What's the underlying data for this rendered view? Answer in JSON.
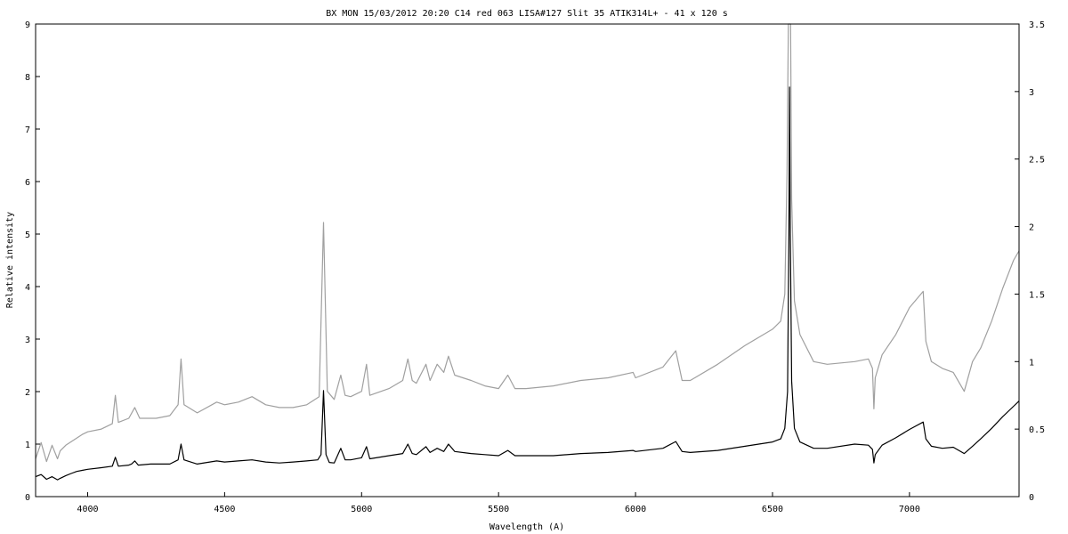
{
  "chart_data": {
    "type": "line",
    "title": "BX MON 15/03/2012 20:20 C14 red 063 LISA#127 Slit 35 ATIK314L+ - 41 x 120 s",
    "xlabel": "Wavelength (A)",
    "ylabel": "Relative intensity",
    "xlim": [
      3810,
      7400
    ],
    "ylim": [
      0,
      9
    ],
    "y2lim": [
      0,
      3.5
    ],
    "xticks": [
      "4000",
      "4500",
      "5000",
      "5500",
      "6000",
      "6500",
      "7000"
    ],
    "yticks": [
      "0",
      "1",
      "2",
      "3",
      "4",
      "5",
      "6",
      "7",
      "8",
      "9"
    ],
    "y2ticks": [
      "0",
      "0.5",
      "1",
      "1.5",
      "2",
      "2.5",
      "3",
      "3.5"
    ],
    "grid": false,
    "series": [
      {
        "axis": "left",
        "color": "#000000",
        "points": [
          [
            3810,
            0.38
          ],
          [
            3830,
            0.42
          ],
          [
            3850,
            0.33
          ],
          [
            3870,
            0.38
          ],
          [
            3890,
            0.32
          ],
          [
            3900,
            0.35
          ],
          [
            3920,
            0.4
          ],
          [
            3940,
            0.44
          ],
          [
            3960,
            0.48
          ],
          [
            3980,
            0.5
          ],
          [
            4000,
            0.52
          ],
          [
            4050,
            0.55
          ],
          [
            4090,
            0.58
          ],
          [
            4101,
            0.75
          ],
          [
            4112,
            0.58
          ],
          [
            4150,
            0.6
          ],
          [
            4160,
            0.62
          ],
          [
            4172,
            0.68
          ],
          [
            4185,
            0.6
          ],
          [
            4230,
            0.62
          ],
          [
            4300,
            0.62
          ],
          [
            4330,
            0.7
          ],
          [
            4341,
            1.0
          ],
          [
            4352,
            0.7
          ],
          [
            4400,
            0.62
          ],
          [
            4471,
            0.68
          ],
          [
            4500,
            0.66
          ],
          [
            4550,
            0.68
          ],
          [
            4600,
            0.7
          ],
          [
            4650,
            0.66
          ],
          [
            4700,
            0.64
          ],
          [
            4750,
            0.66
          ],
          [
            4800,
            0.68
          ],
          [
            4840,
            0.7
          ],
          [
            4852,
            0.8
          ],
          [
            4861,
            2.02
          ],
          [
            4870,
            0.8
          ],
          [
            4882,
            0.65
          ],
          [
            4900,
            0.64
          ],
          [
            4924,
            0.92
          ],
          [
            4940,
            0.7
          ],
          [
            4960,
            0.7
          ],
          [
            5000,
            0.74
          ],
          [
            5018,
            0.95
          ],
          [
            5030,
            0.72
          ],
          [
            5100,
            0.78
          ],
          [
            5150,
            0.82
          ],
          [
            5169,
            1.0
          ],
          [
            5185,
            0.82
          ],
          [
            5200,
            0.8
          ],
          [
            5235,
            0.95
          ],
          [
            5250,
            0.84
          ],
          [
            5276,
            0.92
          ],
          [
            5300,
            0.86
          ],
          [
            5317,
            1.0
          ],
          [
            5340,
            0.86
          ],
          [
            5400,
            0.82
          ],
          [
            5450,
            0.8
          ],
          [
            5500,
            0.78
          ],
          [
            5534,
            0.88
          ],
          [
            5560,
            0.78
          ],
          [
            5600,
            0.78
          ],
          [
            5700,
            0.78
          ],
          [
            5800,
            0.82
          ],
          [
            5900,
            0.84
          ],
          [
            5991,
            0.88
          ],
          [
            6000,
            0.86
          ],
          [
            6100,
            0.92
          ],
          [
            6147,
            1.05
          ],
          [
            6170,
            0.86
          ],
          [
            6200,
            0.84
          ],
          [
            6300,
            0.88
          ],
          [
            6400,
            0.96
          ],
          [
            6450,
            1.0
          ],
          [
            6500,
            1.04
          ],
          [
            6530,
            1.1
          ],
          [
            6545,
            1.3
          ],
          [
            6555,
            2.0
          ],
          [
            6560,
            5.0
          ],
          [
            6562,
            7.8
          ],
          [
            6565,
            5.0
          ],
          [
            6570,
            2.2
          ],
          [
            6580,
            1.3
          ],
          [
            6600,
            1.04
          ],
          [
            6650,
            0.92
          ],
          [
            6700,
            0.92
          ],
          [
            6800,
            1.0
          ],
          [
            6850,
            0.98
          ],
          [
            6865,
            0.9
          ],
          [
            6870,
            0.64
          ],
          [
            6875,
            0.8
          ],
          [
            6900,
            0.98
          ],
          [
            6950,
            1.12
          ],
          [
            7000,
            1.28
          ],
          [
            7050,
            1.42
          ],
          [
            7060,
            1.1
          ],
          [
            7080,
            0.96
          ],
          [
            7120,
            0.92
          ],
          [
            7160,
            0.94
          ],
          [
            7200,
            0.82
          ],
          [
            7230,
            0.96
          ],
          [
            7260,
            1.1
          ],
          [
            7300,
            1.3
          ],
          [
            7340,
            1.52
          ],
          [
            7380,
            1.72
          ],
          [
            7400,
            1.82
          ]
        ]
      },
      {
        "axis": "right",
        "color": "#a0a0a0",
        "points": [
          [
            3810,
            0.28
          ],
          [
            3830,
            0.4
          ],
          [
            3850,
            0.26
          ],
          [
            3870,
            0.38
          ],
          [
            3890,
            0.28
          ],
          [
            3900,
            0.34
          ],
          [
            3920,
            0.38
          ],
          [
            3950,
            0.42
          ],
          [
            3980,
            0.46
          ],
          [
            4000,
            0.48
          ],
          [
            4050,
            0.5
          ],
          [
            4090,
            0.54
          ],
          [
            4101,
            0.75
          ],
          [
            4112,
            0.55
          ],
          [
            4150,
            0.58
          ],
          [
            4172,
            0.66
          ],
          [
            4190,
            0.58
          ],
          [
            4250,
            0.58
          ],
          [
            4300,
            0.6
          ],
          [
            4330,
            0.68
          ],
          [
            4341,
            1.02
          ],
          [
            4352,
            0.68
          ],
          [
            4400,
            0.62
          ],
          [
            4471,
            0.7
          ],
          [
            4500,
            0.68
          ],
          [
            4550,
            0.7
          ],
          [
            4600,
            0.74
          ],
          [
            4650,
            0.68
          ],
          [
            4700,
            0.66
          ],
          [
            4750,
            0.66
          ],
          [
            4800,
            0.68
          ],
          [
            4845,
            0.74
          ],
          [
            4861,
            2.03
          ],
          [
            4875,
            0.78
          ],
          [
            4900,
            0.72
          ],
          [
            4924,
            0.9
          ],
          [
            4940,
            0.75
          ],
          [
            4960,
            0.74
          ],
          [
            5000,
            0.78
          ],
          [
            5018,
            0.98
          ],
          [
            5030,
            0.75
          ],
          [
            5100,
            0.8
          ],
          [
            5150,
            0.86
          ],
          [
            5169,
            1.02
          ],
          [
            5185,
            0.86
          ],
          [
            5200,
            0.84
          ],
          [
            5235,
            0.98
          ],
          [
            5250,
            0.86
          ],
          [
            5276,
            0.98
          ],
          [
            5300,
            0.92
          ],
          [
            5317,
            1.04
          ],
          [
            5340,
            0.9
          ],
          [
            5400,
            0.86
          ],
          [
            5450,
            0.82
          ],
          [
            5500,
            0.8
          ],
          [
            5534,
            0.9
          ],
          [
            5560,
            0.8
          ],
          [
            5600,
            0.8
          ],
          [
            5700,
            0.82
          ],
          [
            5800,
            0.86
          ],
          [
            5900,
            0.88
          ],
          [
            5991,
            0.92
          ],
          [
            6000,
            0.88
          ],
          [
            6100,
            0.96
          ],
          [
            6147,
            1.08
          ],
          [
            6170,
            0.86
          ],
          [
            6200,
            0.86
          ],
          [
            6300,
            0.98
          ],
          [
            6400,
            1.12
          ],
          [
            6450,
            1.18
          ],
          [
            6500,
            1.24
          ],
          [
            6530,
            1.3
          ],
          [
            6545,
            1.5
          ],
          [
            6553,
            2.4
          ],
          [
            6558,
            3.5
          ],
          [
            6562,
            3.5
          ],
          [
            6566,
            3.5
          ],
          [
            6570,
            2.2
          ],
          [
            6580,
            1.45
          ],
          [
            6600,
            1.2
          ],
          [
            6650,
            1.0
          ],
          [
            6700,
            0.98
          ],
          [
            6800,
            1.0
          ],
          [
            6850,
            1.02
          ],
          [
            6865,
            0.95
          ],
          [
            6870,
            0.65
          ],
          [
            6875,
            0.88
          ],
          [
            6900,
            1.05
          ],
          [
            6950,
            1.2
          ],
          [
            7000,
            1.4
          ],
          [
            7050,
            1.52
          ],
          [
            7060,
            1.15
          ],
          [
            7080,
            1.0
          ],
          [
            7120,
            0.95
          ],
          [
            7160,
            0.92
          ],
          [
            7200,
            0.78
          ],
          [
            7230,
            1.0
          ],
          [
            7260,
            1.1
          ],
          [
            7300,
            1.3
          ],
          [
            7340,
            1.54
          ],
          [
            7380,
            1.75
          ],
          [
            7400,
            1.82
          ]
        ]
      }
    ]
  }
}
